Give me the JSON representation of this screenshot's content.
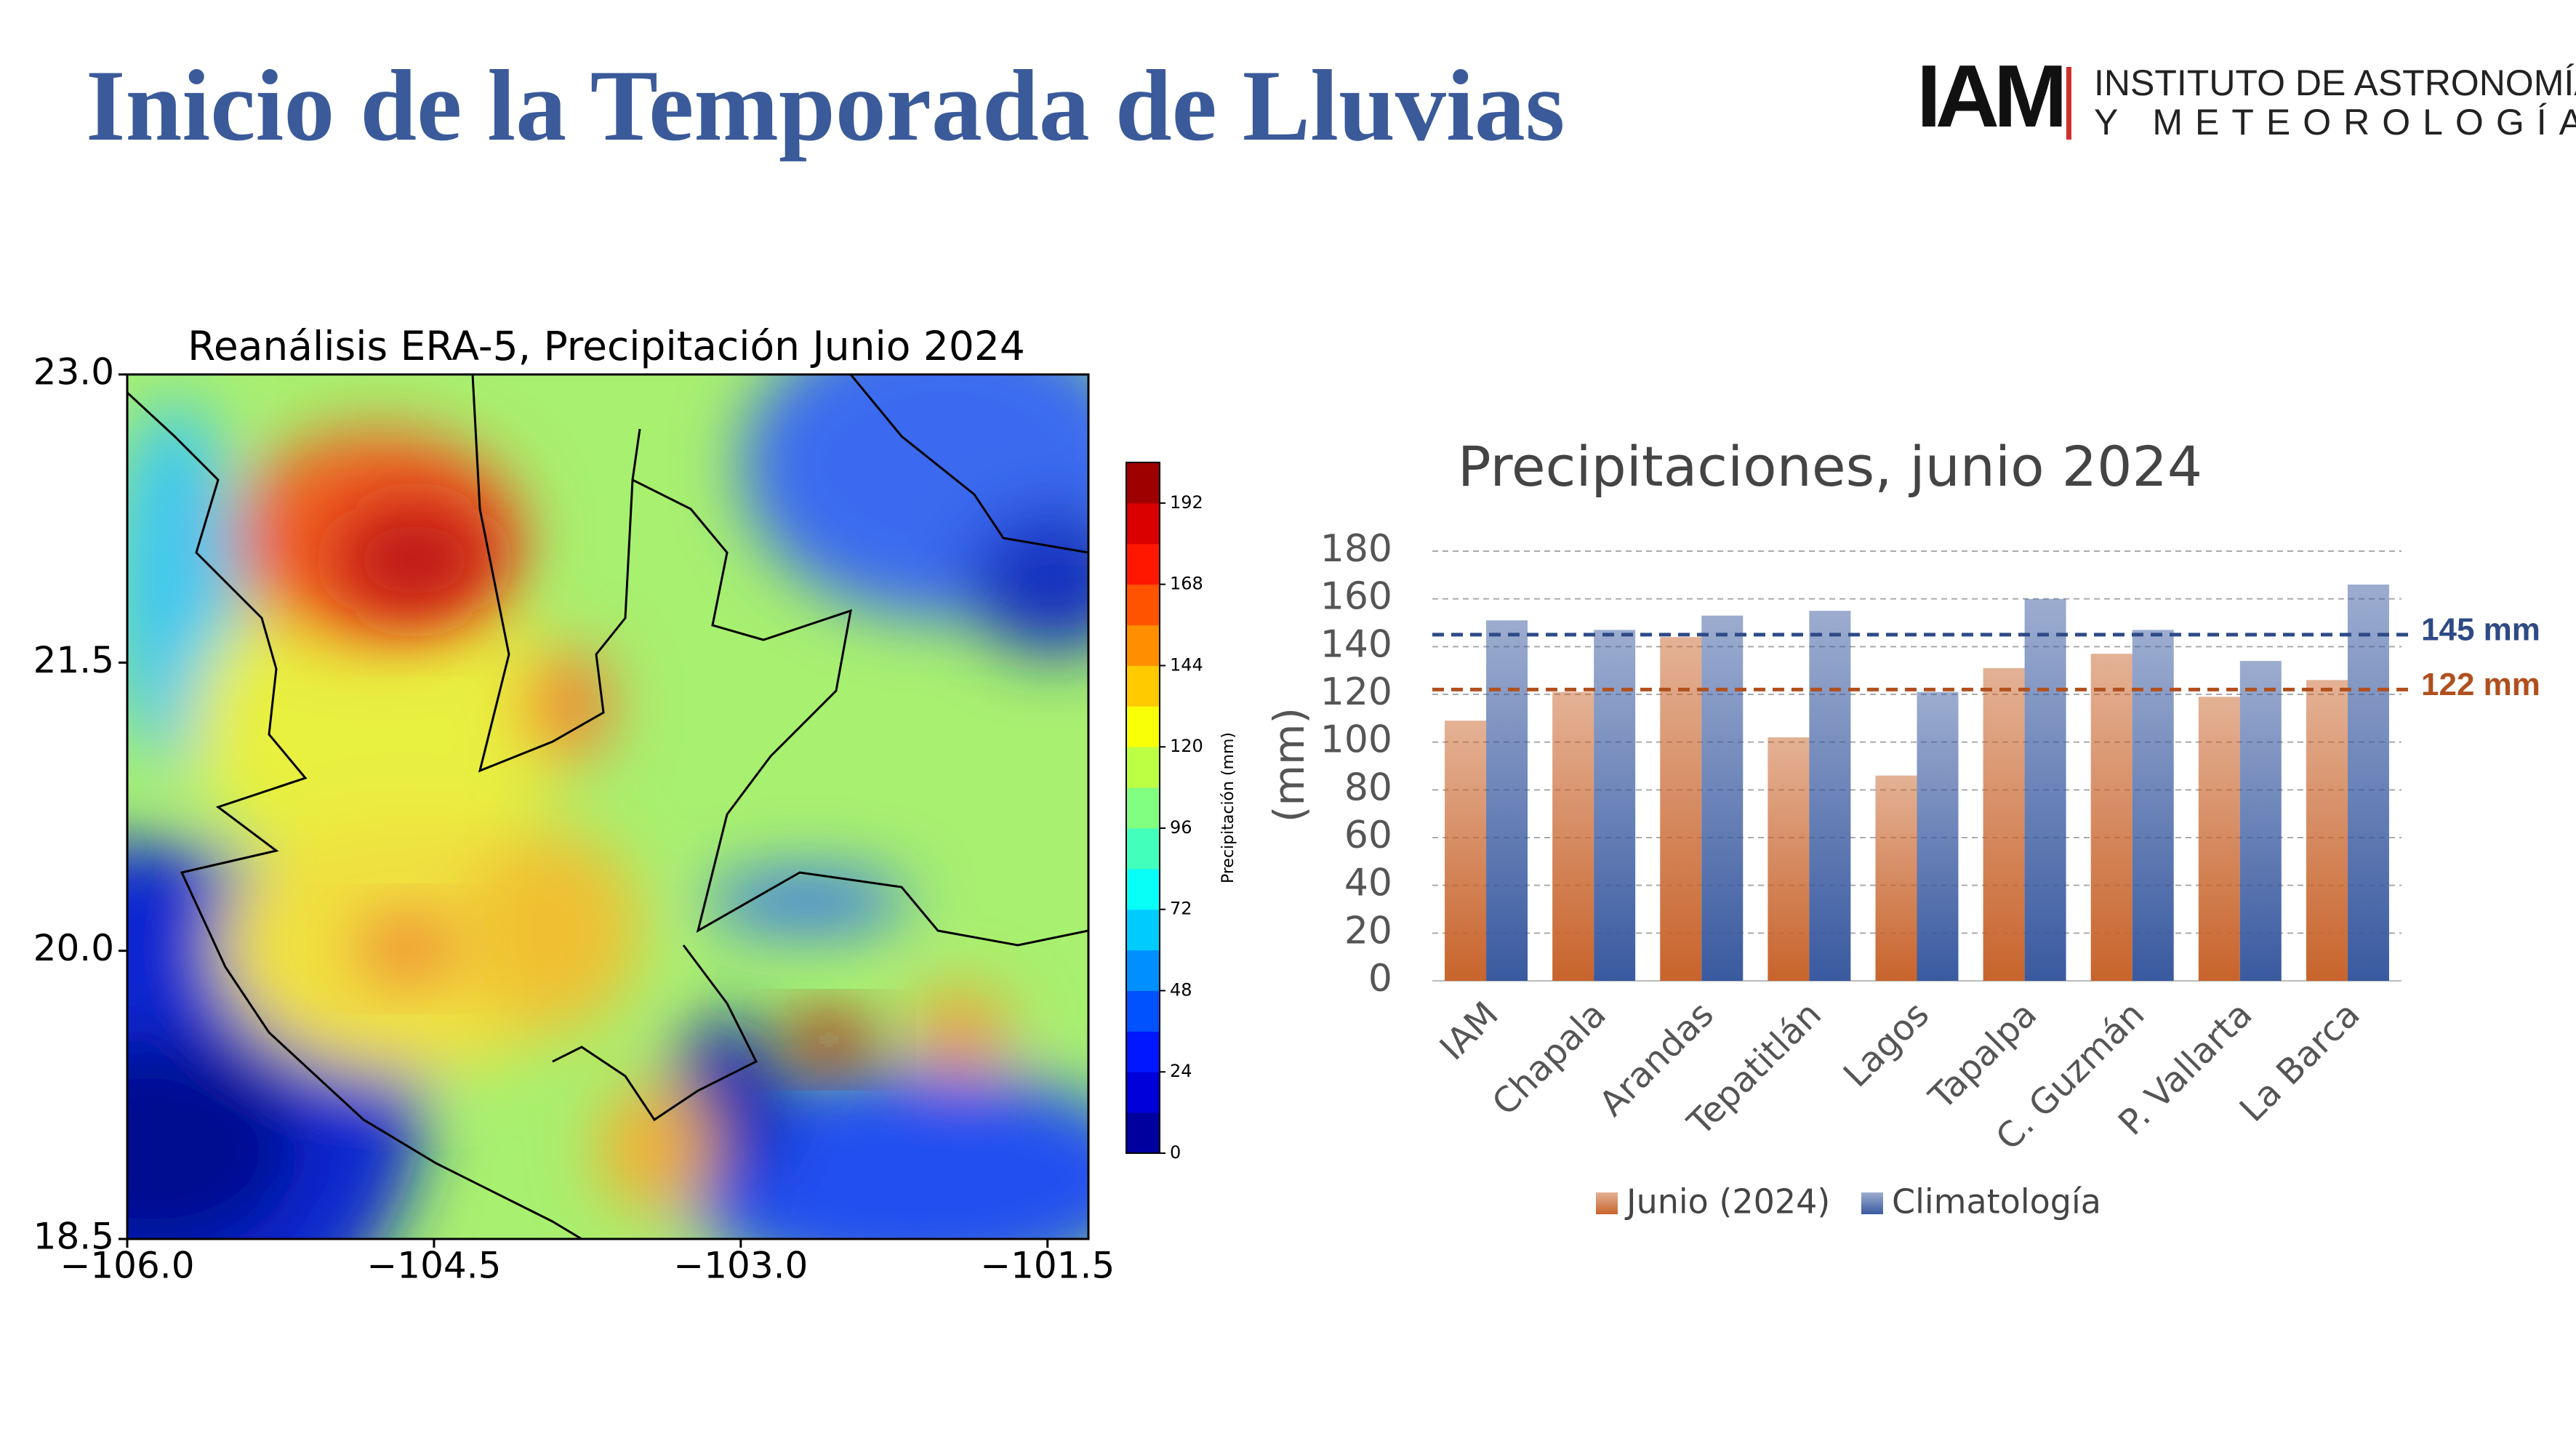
{
  "header": {
    "title": "Inicio de la Temporada de Lluvias",
    "logo": {
      "mark": "IAM",
      "line1": "INSTITUTO DE ASTRONOMÍA",
      "line2": "Y METEOROLOGÍA"
    }
  },
  "chart_data": [
    {
      "type": "contour",
      "title": "Reanálisis ERA-5, Precipitación Junio 2024",
      "xlim": [
        -106.0,
        -101.3
      ],
      "ylim": [
        18.5,
        23.0
      ],
      "xticks": [
        {
          "value": -106.0,
          "label": "−106.0"
        },
        {
          "value": -104.5,
          "label": "−104.5"
        },
        {
          "value": -103.0,
          "label": "−103.0"
        },
        {
          "value": -101.5,
          "label": "−101.5"
        }
      ],
      "yticks": [
        {
          "value": 18.5,
          "label": "18.5"
        },
        {
          "value": 20.0,
          "label": "20.0"
        },
        {
          "value": 21.5,
          "label": "21.5"
        },
        {
          "value": 23.0,
          "label": "23.0"
        }
      ],
      "colorbar": {
        "label": "Precipitación (mm)",
        "clim": [
          0,
          204
        ],
        "ticks": [
          0,
          24,
          48,
          72,
          96,
          120,
          144,
          168,
          192
        ],
        "colormap": "jet"
      }
    },
    {
      "type": "bar",
      "title": "Precipitaciones, junio 2024",
      "ylabel": "(mm)",
      "categories": [
        "IAM",
        "Chapala",
        "Arandas",
        "Tepatitlán",
        "Lagos",
        "Tapalpa",
        "C. Guzmán",
        "P. Vallarta",
        "La Barca"
      ],
      "series": [
        {
          "name": "Junio (2024)",
          "color": "#c8642c",
          "values": [
            109,
            121,
            144,
            102,
            86,
            131,
            137,
            119,
            126
          ]
        },
        {
          "name": "Climatología",
          "color": "#3a5aa0",
          "values": [
            151,
            147,
            153,
            155,
            121,
            160,
            147,
            134,
            166
          ]
        }
      ],
      "ylim": [
        0,
        180
      ],
      "yticks": [
        0,
        20,
        40,
        60,
        80,
        100,
        120,
        140,
        160,
        180
      ],
      "grid": true,
      "legend": "bottom",
      "reference_lines": [
        {
          "value": 145,
          "label": "145 mm",
          "color": "#2e4a86"
        },
        {
          "value": 122,
          "label": "122 mm",
          "color": "#b0501e"
        }
      ]
    }
  ]
}
